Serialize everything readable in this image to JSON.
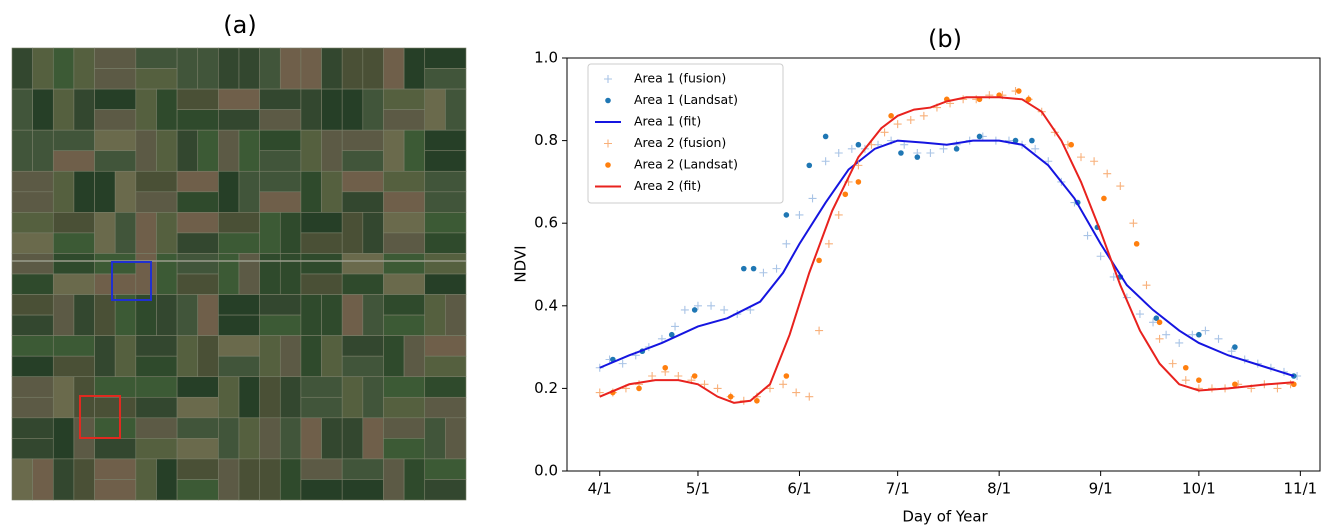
{
  "image_panel": {
    "title": "(a)"
  },
  "chart_data": {
    "type": "scatter",
    "title": "(b)",
    "xlabel": "Day of Year",
    "ylabel": "NDVI",
    "xlim": [
      81,
      311
    ],
    "ylim": [
      0,
      1
    ],
    "xticks": [
      {
        "value": 91,
        "label": "4/1"
      },
      {
        "value": 121,
        "label": "5/1"
      },
      {
        "value": 152,
        "label": "6/1"
      },
      {
        "value": 182,
        "label": "7/1"
      },
      {
        "value": 213,
        "label": "8/1"
      },
      {
        "value": 244,
        "label": "9/1"
      },
      {
        "value": 274,
        "label": "10/1"
      },
      {
        "value": 305,
        "label": "11/1"
      }
    ],
    "yticks": [
      {
        "value": 0,
        "label": "0.0"
      },
      0.2,
      0.4,
      0.6,
      0.8,
      {
        "value": 1,
        "label": "1.0"
      }
    ],
    "legend": "upper left",
    "series": [
      {
        "name": "Area 1 (fusion)",
        "style": "cross",
        "color": "#a9c4e6",
        "x": [
          91,
          94,
          98,
          102,
          106,
          110,
          114,
          117,
          121,
          125,
          129,
          133,
          137,
          141,
          145,
          148,
          152,
          156,
          160,
          164,
          168,
          172,
          176,
          180,
          184,
          188,
          192,
          196,
          200,
          204,
          208,
          212,
          216,
          220,
          224,
          228,
          232,
          236,
          240,
          244,
          248,
          252,
          256,
          260,
          264,
          268,
          272,
          276,
          280,
          284,
          288,
          292,
          296,
          300,
          304
        ],
        "values": [
          0.25,
          0.27,
          0.26,
          0.28,
          0.3,
          0.32,
          0.35,
          0.39,
          0.4,
          0.4,
          0.39,
          0.38,
          0.39,
          0.48,
          0.49,
          0.55,
          0.62,
          0.66,
          0.75,
          0.77,
          0.78,
          0.78,
          0.79,
          0.8,
          0.79,
          0.77,
          0.77,
          0.78,
          0.79,
          0.8,
          0.81,
          0.8,
          0.8,
          0.79,
          0.78,
          0.75,
          0.7,
          0.65,
          0.57,
          0.52,
          0.47,
          0.42,
          0.38,
          0.36,
          0.33,
          0.31,
          0.33,
          0.34,
          0.32,
          0.29,
          0.27,
          0.26,
          0.25,
          0.24,
          0.23
        ]
      },
      {
        "name": "Area 1 (Landsat)",
        "style": "dot",
        "color": "#1f77b4",
        "x": [
          95,
          104,
          113,
          120,
          135,
          138,
          148,
          155,
          160,
          170,
          183,
          188,
          200,
          207,
          218,
          223,
          237,
          243,
          250,
          261,
          274,
          285,
          303
        ],
        "values": [
          0.27,
          0.29,
          0.33,
          0.39,
          0.49,
          0.49,
          0.62,
          0.74,
          0.81,
          0.79,
          0.77,
          0.76,
          0.78,
          0.81,
          0.8,
          0.8,
          0.65,
          0.59,
          0.47,
          0.37,
          0.33,
          0.3,
          0.23
        ]
      },
      {
        "name": "Area 1 (fit)",
        "style": "line",
        "color": "#1515e0",
        "x": [
          91,
          100,
          110,
          121,
          130,
          140,
          147,
          152,
          160,
          167,
          175,
          182,
          190,
          197,
          205,
          213,
          220,
          228,
          236,
          244,
          252,
          260,
          268,
          274,
          283,
          295,
          303
        ],
        "values": [
          0.25,
          0.28,
          0.31,
          0.35,
          0.37,
          0.41,
          0.48,
          0.55,
          0.65,
          0.73,
          0.78,
          0.8,
          0.795,
          0.79,
          0.8,
          0.8,
          0.79,
          0.74,
          0.66,
          0.55,
          0.45,
          0.39,
          0.34,
          0.31,
          0.28,
          0.25,
          0.23
        ]
      },
      {
        "name": "Area 2 (fusion)",
        "style": "cross",
        "color": "#f8b07a",
        "x": [
          91,
          95,
          99,
          103,
          107,
          111,
          115,
          119,
          123,
          127,
          131,
          135,
          139,
          143,
          147,
          151,
          155,
          158,
          161,
          164,
          167,
          170,
          174,
          178,
          182,
          186,
          190,
          194,
          198,
          202,
          206,
          210,
          214,
          218,
          222,
          226,
          230,
          234,
          238,
          242,
          246,
          250,
          254,
          258,
          262,
          266,
          270,
          274,
          278,
          282,
          286,
          290,
          294,
          298,
          302
        ],
        "values": [
          0.19,
          0.19,
          0.2,
          0.21,
          0.23,
          0.24,
          0.23,
          0.22,
          0.21,
          0.2,
          0.18,
          0.17,
          0.18,
          0.2,
          0.21,
          0.19,
          0.18,
          0.34,
          0.55,
          0.62,
          0.7,
          0.74,
          0.79,
          0.82,
          0.84,
          0.85,
          0.86,
          0.88,
          0.89,
          0.9,
          0.9,
          0.91,
          0.91,
          0.92,
          0.9,
          0.87,
          0.82,
          0.79,
          0.76,
          0.75,
          0.72,
          0.69,
          0.6,
          0.45,
          0.32,
          0.26,
          0.22,
          0.2,
          0.2,
          0.2,
          0.21,
          0.2,
          0.21,
          0.2,
          0.21
        ]
      },
      {
        "name": "Area 2 (Landsat)",
        "style": "dot",
        "color": "#ff7f0e",
        "x": [
          95,
          103,
          111,
          120,
          131,
          139,
          148,
          158,
          166,
          170,
          180,
          197,
          207,
          213,
          219,
          222,
          235,
          245,
          255,
          262,
          270,
          274,
          285,
          303
        ],
        "values": [
          0.19,
          0.2,
          0.25,
          0.23,
          0.18,
          0.17,
          0.23,
          0.51,
          0.67,
          0.7,
          0.86,
          0.9,
          0.9,
          0.91,
          0.92,
          0.9,
          0.79,
          0.66,
          0.55,
          0.36,
          0.25,
          0.22,
          0.21,
          0.21
        ]
      },
      {
        "name": "Area 2 (fit)",
        "style": "line",
        "color": "#e8221e",
        "x": [
          91,
          100,
          108,
          115,
          121,
          127,
          132,
          137,
          143,
          149,
          155,
          162,
          170,
          177,
          182,
          187,
          192,
          197,
          203,
          213,
          220,
          226,
          232,
          238,
          244,
          250,
          256,
          262,
          268,
          274,
          283,
          295,
          303
        ],
        "values": [
          0.18,
          0.21,
          0.22,
          0.22,
          0.21,
          0.18,
          0.165,
          0.17,
          0.21,
          0.33,
          0.48,
          0.63,
          0.76,
          0.83,
          0.86,
          0.875,
          0.88,
          0.895,
          0.905,
          0.905,
          0.9,
          0.87,
          0.8,
          0.7,
          0.58,
          0.45,
          0.34,
          0.26,
          0.21,
          0.195,
          0.2,
          0.21,
          0.215
        ]
      }
    ]
  }
}
